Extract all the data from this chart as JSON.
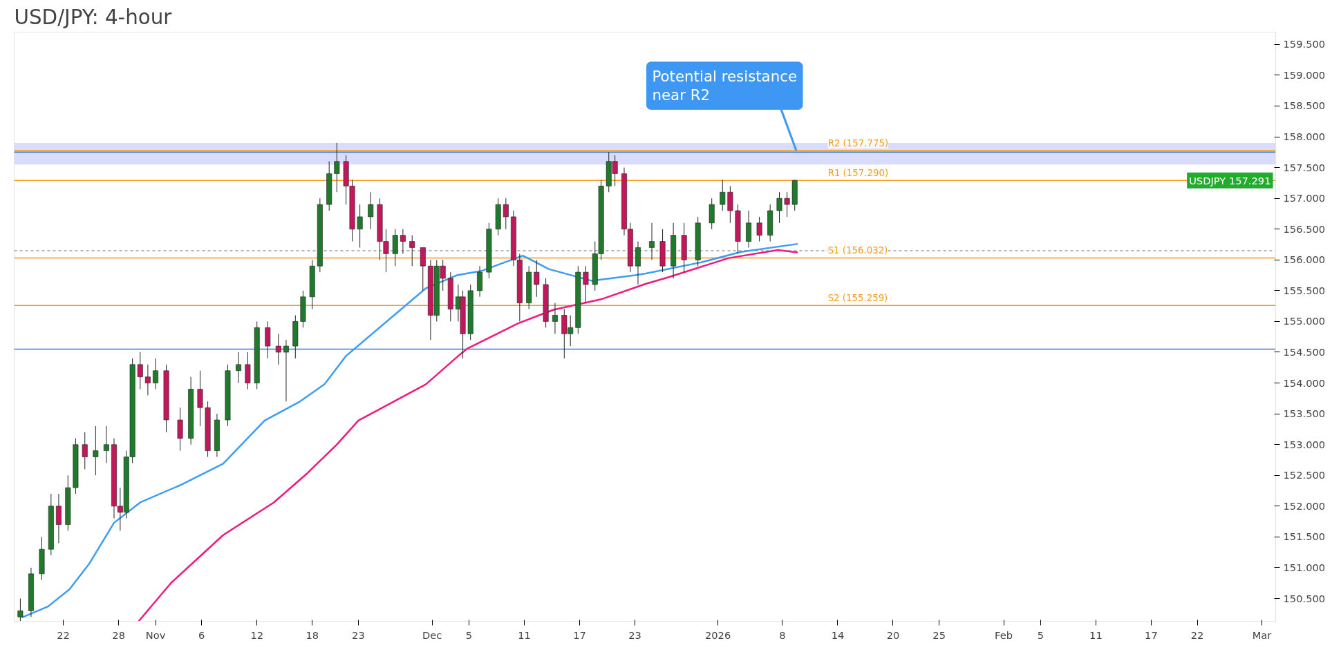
{
  "chart_data": {
    "type": "candlestick",
    "title": "USD/JPY: 4-hour",
    "xlim": [
      "2025-10-16T16:00",
      "2026-03-02T12:00"
    ],
    "ylim": [
      150.13,
      159.7
    ],
    "xticks": [
      {
        "value": "2025-10-22",
        "label": "22"
      },
      {
        "value": "2025-10-28",
        "label": "28"
      },
      {
        "value": "2025-11-01",
        "label": "Nov"
      },
      {
        "value": "2025-11-06",
        "label": "6"
      },
      {
        "value": "2025-11-12",
        "label": "12"
      },
      {
        "value": "2025-11-18",
        "label": "18"
      },
      {
        "value": "2025-11-23",
        "label": "23"
      },
      {
        "value": "2025-12-01",
        "label": "Dec"
      },
      {
        "value": "2025-12-05",
        "label": "5"
      },
      {
        "value": "2025-12-11",
        "label": "11"
      },
      {
        "value": "2025-12-17",
        "label": "17"
      },
      {
        "value": "2025-12-23",
        "label": "23"
      },
      {
        "value": "2026-01-01",
        "label": "2026"
      },
      {
        "value": "2026-01-08",
        "label": "8"
      },
      {
        "value": "2026-01-14",
        "label": "14"
      },
      {
        "value": "2026-01-20",
        "label": "20"
      },
      {
        "value": "2026-01-25",
        "label": "25"
      },
      {
        "value": "2026-02-01",
        "label": "Feb"
      },
      {
        "value": "2026-02-05",
        "label": "5"
      },
      {
        "value": "2026-02-11",
        "label": "11"
      },
      {
        "value": "2026-02-17",
        "label": "17"
      },
      {
        "value": "2026-02-22",
        "label": "22"
      },
      {
        "value": "2026-03-01",
        "label": "Mar"
      }
    ],
    "yticks": [
      {
        "value": 150.5,
        "label": "150.500"
      },
      {
        "value": 151,
        "label": "151.000"
      },
      {
        "value": 151.5,
        "label": "151.500"
      },
      {
        "value": 152,
        "label": "152.000"
      },
      {
        "value": 152.5,
        "label": "152.500"
      },
      {
        "value": 153,
        "label": "153.000"
      },
      {
        "value": 153.5,
        "label": "153.500"
      },
      {
        "value": 154,
        "label": "154.000"
      },
      {
        "value": 154.5,
        "label": "154.500"
      },
      {
        "value": 155,
        "label": "155.000"
      },
      {
        "value": 155.5,
        "label": "155.500"
      },
      {
        "value": 156,
        "label": "156.000"
      },
      {
        "value": 156.5,
        "label": "156.500"
      },
      {
        "value": 157,
        "label": "157.000"
      },
      {
        "value": 157.5,
        "label": "157.500"
      },
      {
        "value": 158,
        "label": "158.000"
      },
      {
        "value": 158.5,
        "label": "158.500"
      },
      {
        "value": 159,
        "label": "159.000"
      },
      {
        "value": 159.5,
        "label": "159.500"
      }
    ],
    "grid": false,
    "series": [
      {
        "type": "candlestick",
        "x": [
          "2025-10-17T08:00",
          "2025-10-18T12:00",
          "2025-10-19T16:00",
          "2025-10-20T16:00",
          "2025-10-21T12:00",
          "2025-10-22T12:00",
          "2025-10-23T08:00",
          "2025-10-24T08:00",
          "2025-10-25T12:00",
          "2025-10-26T16:00",
          "2025-10-27T12:00",
          "2025-10-28T04:00",
          "2025-10-28T20:00",
          "2025-10-29T12:00",
          "2025-10-30T08:00",
          "2025-10-31T04:00",
          "2025-11-01T00:00",
          "2025-11-02T04:00",
          "2025-11-03T16:00",
          "2025-11-04T20:00",
          "2025-11-05T20:00",
          "2025-11-06T16:00",
          "2025-11-07T16:00",
          "2025-11-08T20:00",
          "2025-11-10T00:00",
          "2025-11-11T00:00",
          "2025-11-12T00:00",
          "2025-11-13T04:00",
          "2025-11-14T08:00",
          "2025-11-15T04:00",
          "2025-11-16T04:00",
          "2025-11-17T00:00",
          "2025-11-18T00:00",
          "2025-11-18T20:00",
          "2025-11-19T20:00",
          "2025-11-20T16:00",
          "2025-11-21T16:00",
          "2025-11-22T08:00",
          "2025-11-23T04:00",
          "2025-11-24T08:00",
          "2025-11-25T08:00",
          "2025-11-26T00:00",
          "2025-11-27T00:00",
          "2025-11-27T20:00",
          "2025-11-28T20:00",
          "2025-11-30T00:00",
          "2025-11-30T20:00",
          "2025-12-01T12:00",
          "2025-12-02T04:00",
          "2025-12-03T00:00",
          "2025-12-03T20:00",
          "2025-12-04T08:00",
          "2025-12-05T04:00",
          "2025-12-06T04:00",
          "2025-12-07T04:00",
          "2025-12-08T04:00",
          "2025-12-09T00:00",
          "2025-12-09T20:00",
          "2025-12-10T12:00",
          "2025-12-11T12:00",
          "2025-12-12T08:00",
          "2025-12-13T08:00",
          "2025-12-14T08:00",
          "2025-12-15T08:00",
          "2025-12-16T00:00",
          "2025-12-16T20:00",
          "2025-12-17T16:00",
          "2025-12-18T16:00",
          "2025-12-19T08:00",
          "2025-12-20T04:00",
          "2025-12-20T20:00",
          "2025-12-21T20:00",
          "2025-12-22T12:00",
          "2025-12-23T08:00",
          "2025-12-24T20:00",
          "2025-12-26T00:00",
          "2025-12-27T04:00",
          "2025-12-28T08:00",
          "2025-12-29T20:00",
          "2025-12-31T08:00",
          "2026-01-01T12:00",
          "2026-01-02T08:00",
          "2026-01-03T04:00",
          "2026-01-04T08:00",
          "2026-01-05T12:00",
          "2026-01-06T16:00",
          "2026-01-07T16:00",
          "2026-01-08T12:00",
          "2026-01-09T08:00"
        ],
        "ohlc": [
          [
            150.2,
            150.5,
            150.1,
            150.3
          ],
          [
            150.3,
            151.0,
            150.2,
            150.9
          ],
          [
            150.9,
            151.5,
            150.8,
            151.3
          ],
          [
            151.3,
            152.2,
            151.2,
            152.0
          ],
          [
            152.0,
            152.2,
            151.4,
            151.7
          ],
          [
            151.7,
            152.5,
            151.6,
            152.3
          ],
          [
            152.3,
            153.1,
            152.2,
            153.0
          ],
          [
            153.0,
            153.2,
            152.6,
            152.8
          ],
          [
            152.8,
            153.3,
            152.5,
            152.9
          ],
          [
            152.9,
            153.3,
            152.7,
            153.0
          ],
          [
            153.0,
            153.1,
            151.8,
            152.0
          ],
          [
            152.0,
            152.3,
            151.6,
            151.9
          ],
          [
            151.9,
            152.9,
            151.8,
            152.8
          ],
          [
            152.8,
            154.4,
            152.7,
            154.3
          ],
          [
            154.3,
            154.5,
            153.9,
            154.1
          ],
          [
            154.1,
            154.3,
            153.8,
            154.0
          ],
          [
            154.0,
            154.4,
            153.9,
            154.2
          ],
          [
            154.2,
            154.3,
            153.2,
            153.4
          ],
          [
            153.4,
            153.6,
            152.9,
            153.1
          ],
          [
            153.1,
            154.1,
            153.0,
            153.9
          ],
          [
            153.9,
            154.2,
            153.3,
            153.6
          ],
          [
            153.6,
            153.7,
            152.8,
            152.9
          ],
          [
            152.9,
            153.5,
            152.8,
            153.4
          ],
          [
            153.4,
            154.3,
            153.3,
            154.2
          ],
          [
            154.2,
            154.5,
            154.0,
            154.3
          ],
          [
            154.3,
            154.5,
            153.9,
            154.0
          ],
          [
            154.0,
            155.0,
            153.9,
            154.9
          ],
          [
            154.9,
            155.0,
            154.4,
            154.6
          ],
          [
            154.6,
            154.8,
            154.3,
            154.5
          ],
          [
            154.5,
            154.7,
            153.7,
            154.6
          ],
          [
            154.6,
            155.1,
            154.4,
            155.0
          ],
          [
            155.0,
            155.5,
            154.9,
            155.4
          ],
          [
            155.4,
            156.0,
            155.2,
            155.9
          ],
          [
            155.9,
            157.0,
            155.8,
            156.9
          ],
          [
            156.9,
            157.6,
            156.8,
            157.4
          ],
          [
            157.4,
            157.9,
            157.1,
            157.6
          ],
          [
            157.6,
            157.7,
            156.9,
            157.2
          ],
          [
            157.2,
            157.3,
            156.3,
            156.5
          ],
          [
            156.5,
            156.9,
            156.2,
            156.7
          ],
          [
            156.7,
            157.1,
            156.5,
            156.9
          ],
          [
            156.9,
            157.0,
            156.0,
            156.3
          ],
          [
            156.3,
            156.5,
            155.8,
            156.1
          ],
          [
            156.1,
            156.5,
            155.9,
            156.4
          ],
          [
            156.4,
            156.5,
            156.1,
            156.3
          ],
          [
            156.3,
            156.4,
            155.9,
            156.2
          ],
          [
            156.2,
            156.2,
            155.5,
            155.9
          ],
          [
            155.9,
            156.0,
            154.7,
            155.1
          ],
          [
            155.1,
            156.0,
            155.0,
            155.9
          ],
          [
            155.9,
            156.0,
            155.5,
            155.7
          ],
          [
            155.7,
            155.8,
            155.0,
            155.2
          ],
          [
            155.2,
            155.6,
            155.0,
            155.4
          ],
          [
            155.4,
            155.5,
            154.4,
            154.8
          ],
          [
            154.8,
            155.6,
            154.7,
            155.5
          ],
          [
            155.5,
            155.9,
            155.4,
            155.8
          ],
          [
            155.8,
            156.6,
            155.7,
            156.5
          ],
          [
            156.5,
            157.0,
            156.4,
            156.9
          ],
          [
            156.9,
            157.0,
            156.5,
            156.7
          ],
          [
            156.7,
            156.8,
            155.9,
            156.0
          ],
          [
            156.0,
            156.1,
            155.0,
            155.3
          ],
          [
            155.3,
            155.9,
            155.2,
            155.8
          ],
          [
            155.8,
            156.0,
            155.4,
            155.6
          ],
          [
            155.6,
            155.7,
            154.9,
            155.0
          ],
          [
            155.0,
            155.3,
            154.8,
            155.1
          ],
          [
            155.1,
            155.2,
            154.4,
            154.8
          ],
          [
            154.8,
            155.1,
            154.6,
            154.9
          ],
          [
            154.9,
            155.9,
            154.8,
            155.8
          ],
          [
            155.8,
            155.9,
            155.3,
            155.6
          ],
          [
            155.6,
            156.3,
            155.5,
            156.1
          ],
          [
            156.1,
            157.3,
            156.0,
            157.2
          ],
          [
            157.2,
            157.75,
            157.1,
            157.6
          ],
          [
            157.6,
            157.7,
            157.2,
            157.4
          ],
          [
            157.4,
            157.5,
            156.4,
            156.5
          ],
          [
            156.5,
            156.6,
            155.8,
            155.9
          ],
          [
            155.9,
            156.3,
            155.6,
            156.2
          ],
          [
            156.2,
            156.6,
            156.0,
            156.3
          ],
          [
            156.3,
            156.5,
            155.8,
            155.9
          ],
          [
            155.9,
            156.6,
            155.7,
            156.4
          ],
          [
            156.4,
            156.6,
            155.8,
            156.0
          ],
          [
            156.0,
            156.7,
            155.9,
            156.6
          ],
          [
            156.6,
            157.0,
            156.5,
            156.9
          ],
          [
            156.9,
            157.3,
            156.8,
            157.1
          ],
          [
            157.1,
            157.2,
            156.6,
            156.8
          ],
          [
            156.8,
            156.9,
            156.1,
            156.3
          ],
          [
            156.3,
            156.8,
            156.2,
            156.6
          ],
          [
            156.6,
            156.7,
            156.3,
            156.4
          ],
          [
            156.4,
            156.9,
            156.3,
            156.8
          ],
          [
            156.8,
            157.1,
            156.6,
            157.0
          ],
          [
            157.0,
            157.1,
            156.7,
            156.9
          ],
          [
            156.9,
            157.3,
            156.8,
            157.29
          ]
        ],
        "colors": [
          "#1f7a2c",
          "#1f7a2c",
          "#1f7a2c",
          "#1f7a2c",
          "#c2185b",
          "#1f7a2c",
          "#1f7a2c",
          "#c2185b",
          "#1f7a2c",
          "#1f7a2c",
          "#c2185b",
          "#c2185b",
          "#1f7a2c",
          "#1f7a2c",
          "#c2185b",
          "#c2185b",
          "#1f7a2c",
          "#c2185b",
          "#c2185b",
          "#1f7a2c",
          "#c2185b",
          "#c2185b",
          "#1f7a2c",
          "#1f7a2c",
          "#1f7a2c",
          "#c2185b",
          "#1f7a2c",
          "#c2185b",
          "#c2185b",
          "#1f7a2c",
          "#1f7a2c",
          "#1f7a2c",
          "#1f7a2c",
          "#1f7a2c",
          "#1f7a2c",
          "#1f7a2c",
          "#c2185b",
          "#c2185b",
          "#1f7a2c",
          "#1f7a2c",
          "#c2185b",
          "#c2185b",
          "#1f7a2c",
          "#c2185b",
          "#c2185b",
          "#c2185b",
          "#c2185b",
          "#1f7a2c",
          "#c2185b",
          "#c2185b",
          "#1f7a2c",
          "#c2185b",
          "#1f7a2c",
          "#1f7a2c",
          "#1f7a2c",
          "#1f7a2c",
          "#c2185b",
          "#c2185b",
          "#c2185b",
          "#1f7a2c",
          "#c2185b",
          "#c2185b",
          "#1f7a2c",
          "#c2185b",
          "#1f7a2c",
          "#1f7a2c",
          "#c2185b",
          "#1f7a2c",
          "#1f7a2c",
          "#1f7a2c",
          "#c2185b",
          "#c2185b",
          "#c2185b",
          "#1f7a2c",
          "#1f7a2c",
          "#c2185b",
          "#1f7a2c",
          "#c2185b",
          "#1f7a2c",
          "#1f7a2c",
          "#1f7a2c",
          "#c2185b",
          "#c2185b",
          "#1f7a2c",
          "#c2185b",
          "#1f7a2c",
          "#1f7a2c",
          "#c2185b",
          "#1f7a2c"
        ]
      },
      {
        "type": "line",
        "color": "#3d9df3",
        "x": [
          "2025-10-17T12:00",
          "2025-10-20T08:00",
          "2025-10-22T16:00",
          "2025-10-24T20:00",
          "2025-10-27T12:00",
          "2025-10-30T08:00",
          "2025-11-03T16:00",
          "2025-11-08T08:00",
          "2025-11-12T20:00",
          "2025-11-16T16:00",
          "2025-11-19T08:00",
          "2025-11-21T16:00",
          "2025-11-30T08:00",
          "2025-12-03T16:00",
          "2025-12-06T08:00",
          "2025-12-10T20:00",
          "2025-12-13T16:00",
          "2025-12-18T08:00",
          "2025-12-23T00:00",
          "2025-12-24T04:00",
          "2025-12-30T04:00",
          "2026-01-03T12:00",
          "2026-01-09T16:00"
        ],
        "values": [
          150.19,
          150.37,
          150.65,
          151.07,
          151.73,
          152.06,
          152.34,
          152.69,
          153.39,
          153.7,
          153.98,
          154.44,
          155.54,
          155.75,
          155.82,
          156.07,
          155.85,
          155.66,
          155.75,
          155.78,
          155.96,
          156.13,
          156.26
        ]
      },
      {
        "type": "line",
        "color": "#f0197d",
        "x": [
          "2025-10-30T04:00",
          "2025-11-02T16:00",
          "2025-11-08T08:00",
          "2025-11-13T20:00",
          "2025-11-17T12:00",
          "2025-11-20T16:00",
          "2025-11-23T00:00",
          "2025-11-26T12:00",
          "2025-11-30T08:00",
          "2025-12-03T20:00",
          "2025-12-04T20:00",
          "2025-12-10T08:00",
          "2025-12-14T04:00",
          "2025-12-19T08:00",
          "2025-12-24T04:00",
          "2025-12-26T16:00",
          "2026-01-02T04:00",
          "2026-01-07T12:00",
          "2026-01-09T16:00"
        ],
        "values": [
          150.13,
          150.75,
          151.53,
          152.06,
          152.54,
          153.0,
          153.39,
          153.67,
          153.98,
          154.44,
          154.56,
          154.97,
          155.19,
          155.36,
          155.61,
          155.72,
          156.03,
          156.16,
          156.12
        ]
      }
    ],
    "bands": [
      {
        "axis": "y",
        "from": 157.55,
        "to": 157.9,
        "color": "#d6d8fb",
        "label": null
      }
    ],
    "ref_lines": [
      {
        "axis": "y",
        "value": 157.75,
        "label": null,
        "color": "#2f7fe0",
        "line_style": "solid"
      },
      {
        "axis": "y",
        "value": 154.55,
        "label": null,
        "color": "#2f7fe0",
        "line_style": "solid"
      },
      {
        "axis": "y",
        "value": 156.15,
        "label": null,
        "color": "#9e9e9e",
        "line_style": "dashed"
      },
      {
        "axis": "y",
        "value": 157.775,
        "label": "R2 (157.775)",
        "color": "#f59c1a",
        "line_style": "solid"
      },
      {
        "axis": "y",
        "value": 157.29,
        "label": "R1 (157.290)",
        "color": "#f59c1a",
        "line_style": "solid"
      },
      {
        "axis": "y",
        "value": 156.032,
        "label": "S1 (156.032)",
        "color": "#f59c1a",
        "line_style": "solid"
      },
      {
        "axis": "y",
        "value": 155.259,
        "label": "S2 (155.259)",
        "color": "#f59c1a",
        "line_style": "solid"
      }
    ],
    "annotations": [
      {
        "text": "Potential resistance\nnear R2",
        "x": "2026-01-09T12:00",
        "y": 157.775
      },
      {
        "text": "USDJPY 157.291",
        "y": 157.291
      }
    ]
  }
}
